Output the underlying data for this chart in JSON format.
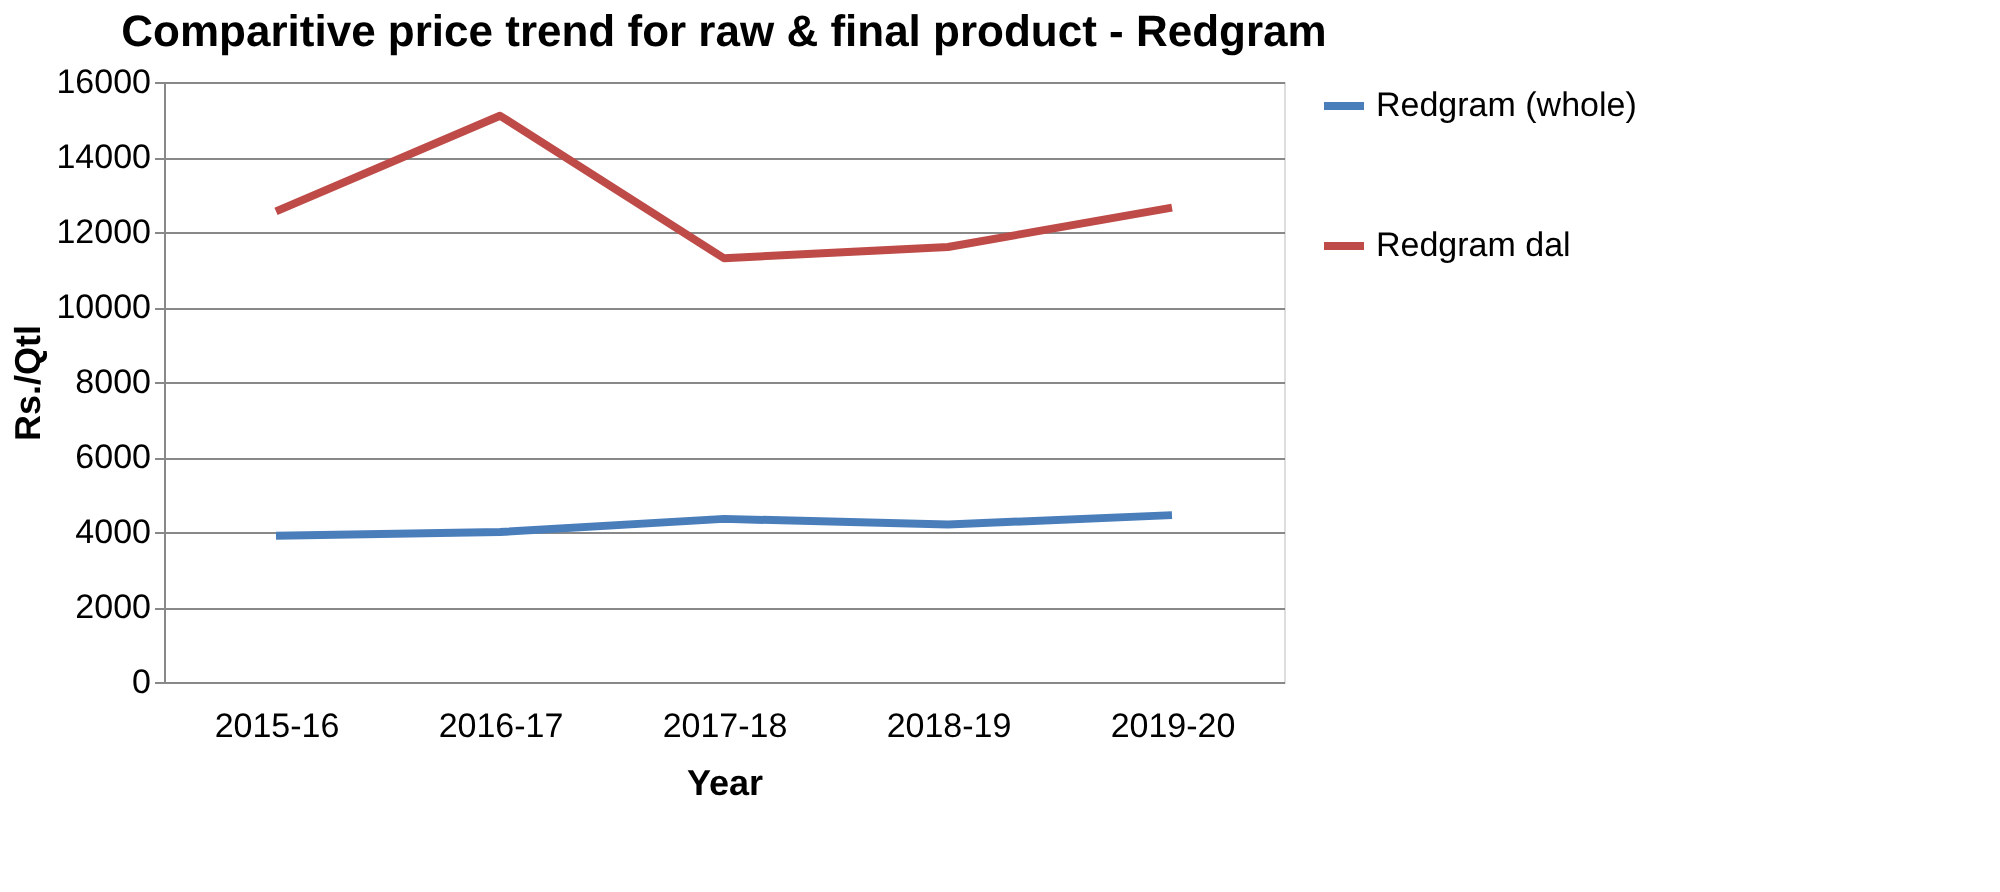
{
  "chart_data": {
    "type": "line",
    "title": "Comparitive price trend for raw & final product - Redgram",
    "xlabel": "Year",
    "ylabel": "Rs./Qtl",
    "categories": [
      "2015-16",
      "2016-17",
      "2017-18",
      "2018-19",
      "2019-20"
    ],
    "series": [
      {
        "name": "Redgram (whole)",
        "color": "#4a7ebb",
        "values": [
          3900,
          4000,
          4350,
          4200,
          4450
        ]
      },
      {
        "name": "Redgram dal",
        "color": "#be4b48",
        "values": [
          12550,
          15100,
          11300,
          11600,
          12650
        ]
      }
    ],
    "ylim": [
      0,
      16000
    ],
    "yticks": [
      0,
      2000,
      4000,
      6000,
      8000,
      10000,
      12000,
      14000,
      16000
    ],
    "grid": "y",
    "legend": "right",
    "marker": "none",
    "line_style": "solid"
  }
}
